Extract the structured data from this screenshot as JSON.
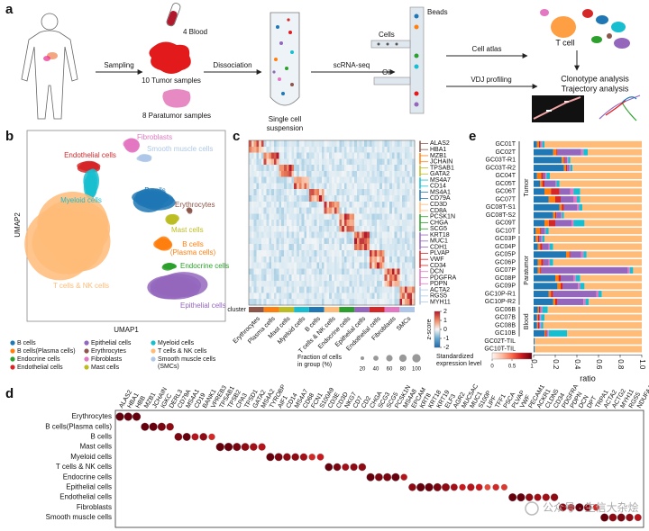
{
  "panel_labels": [
    "a",
    "b",
    "c",
    "d",
    "e"
  ],
  "a": {
    "blood": "4 Blood",
    "tumor": "10 Tumor samples",
    "paratumor": "8 Paratumor samples",
    "sampling": "Sampling",
    "dissociation": "Dissociation",
    "suspension": [
      "Single cell",
      "suspension"
    ],
    "scrnaseq": "scRNA-seq",
    "cells": "Cells",
    "beads": "Beads",
    "oil": "Oil",
    "cell_atlas": "Cell atlas",
    "t_cell": "T cell",
    "vdj": "VDJ profiling",
    "clonotype": "Clonotype analysis",
    "trajectory": "Trajectory analysis"
  },
  "b": {
    "xlabel": "UMAP1",
    "ylabel": "UMAP2",
    "labels": [
      {
        "lines": [
          "Fibroblasts"
        ],
        "color": "#e377c2"
      },
      {
        "lines": [
          "Endothelial cells"
        ],
        "color": "#d62728"
      },
      {
        "lines": [
          "Smooth muscle cells"
        ],
        "color": "#aec7e8"
      },
      {
        "lines": [
          "B cells"
        ],
        "color": "#1f77b4"
      },
      {
        "lines": [
          "Myeloid cells"
        ],
        "color": "#17becf"
      },
      {
        "lines": [
          "Erythrocytes"
        ],
        "color": "#8c564b"
      },
      {
        "lines": [
          "Mast cells"
        ],
        "color": "#bcbd22"
      },
      {
        "lines": [
          "B cells",
          "(Plasma cells)"
        ],
        "color": "#ff7f0e"
      },
      {
        "lines": [
          "Endocrine cells"
        ],
        "color": "#2ca02c"
      },
      {
        "lines": [
          "T cells & NK cells"
        ],
        "color": "#ffbb78"
      },
      {
        "lines": [
          "Epithelial cells"
        ],
        "color": "#9467bd"
      }
    ],
    "legend": [
      {
        "lines": [
          "B cells"
        ],
        "color": "#1f77b4"
      },
      {
        "lines": [
          "B cells(Plasma cells)"
        ],
        "color": "#ff7f0e"
      },
      {
        "lines": [
          "Endocrine cells"
        ],
        "color": "#2ca02c"
      },
      {
        "lines": [
          "Endothelial cells"
        ],
        "color": "#d62728"
      },
      {
        "lines": [
          "Epithelial cells"
        ],
        "color": "#9467bd"
      },
      {
        "lines": [
          "Erythrocytes"
        ],
        "color": "#8c564b"
      },
      {
        "lines": [
          "Fibroblasts"
        ],
        "color": "#e377c2"
      },
      {
        "lines": [
          "Mast cells"
        ],
        "color": "#bcbd22"
      },
      {
        "lines": [
          "Myeloid cells"
        ],
        "color": "#17becf"
      },
      {
        "lines": [
          "T cells & NK cells"
        ],
        "color": "#ffbb78"
      },
      {
        "lines": [
          "Smooth muscle cells",
          "(SMCs)"
        ],
        "color": "#aec7e8"
      }
    ]
  },
  "c": {
    "cluster_label": "cluster",
    "colorbar_label": "z-score",
    "colorbar_lim": [
      -2,
      2
    ],
    "colorbar_ticks": [
      2,
      1,
      0,
      -1,
      -2
    ],
    "groups": [
      {
        "cluster": "Erythrocytes",
        "color": "#8c564b",
        "genes": [
          "ALAS2",
          "HBA1"
        ]
      },
      {
        "cluster": "Plasma cells",
        "color": "#ff7f0e",
        "genes": [
          "MZB1",
          "JCHAIN"
        ]
      },
      {
        "cluster": "Mast cells",
        "color": "#bcbd22",
        "genes": [
          "TPSAB1",
          "GATA2"
        ]
      },
      {
        "cluster": "Myeloid cells",
        "color": "#17becf",
        "genes": [
          "MS4A7",
          "CD14"
        ]
      },
      {
        "cluster": "B cells",
        "color": "#1f77b4",
        "genes": [
          "MS4A1",
          "CD79A"
        ]
      },
      {
        "cluster": "T cells & NK cells",
        "color": "#ffbb78",
        "genes": [
          "CD3D",
          "CD8A"
        ]
      },
      {
        "cluster": "Endocrine cells",
        "color": "#2ca02c",
        "genes": [
          "PCSK1N",
          "CHGA",
          "SCG5"
        ]
      },
      {
        "cluster": "Epithelial cells",
        "color": "#9467bd",
        "genes": [
          "KRT18",
          "MUC1",
          "CDH1"
        ]
      },
      {
        "cluster": "Endothelial cells",
        "color": "#d62728",
        "genes": [
          "PLVAP",
          "VWF",
          "CD34"
        ]
      },
      {
        "cluster": "Fibroblasts",
        "color": "#e377c2",
        "genes": [
          "DCN",
          "PDGFRA",
          "PDPN"
        ]
      },
      {
        "cluster": "SMCs",
        "color": "#aec7e8",
        "genes": [
          "ACTA2",
          "RGS5",
          "MYH11"
        ]
      }
    ]
  },
  "d": {
    "size_legend": {
      "title": [
        "Fraction of cells",
        "in group (%)"
      ],
      "values": [
        20,
        40,
        60,
        80,
        100
      ]
    },
    "color_legend": {
      "title": [
        "Standardized",
        "expression level"
      ],
      "lim": [
        0,
        1
      ],
      "ticks": [
        0,
        0.5,
        1
      ]
    },
    "watermark": "公众号 · 生信大杂烩",
    "groups": [
      {
        "cell_type": "Erythrocytes",
        "genes": [
          "ALAS2",
          "HBA1",
          "HBB"
        ],
        "fraction": [
          95,
          95,
          95
        ],
        "expression": [
          1,
          1,
          1
        ]
      },
      {
        "cell_type": "B cells(Plasma cells)",
        "genes": [
          "MZB1",
          "JCHAIN",
          "IGKC",
          "DERL3"
        ],
        "fraction": [
          90,
          95,
          92,
          80
        ],
        "expression": [
          1,
          1,
          0.95,
          0.9
        ]
      },
      {
        "cell_type": "B cells",
        "genes": [
          "CD79A",
          "MS4A1",
          "CD19",
          "BANK1",
          "VPREB3"
        ],
        "fraction": [
          85,
          88,
          70,
          80,
          60
        ],
        "expression": [
          0.95,
          1,
          0.8,
          0.9,
          0.7
        ]
      },
      {
        "cell_type": "Mast cells",
        "genes": [
          "TPSAB1",
          "TPSB2",
          "CPA3",
          "TPSD1",
          "GATA2",
          "MS4A2"
        ],
        "fraction": [
          95,
          95,
          90,
          85,
          80,
          75
        ],
        "expression": [
          1,
          1,
          0.95,
          0.9,
          0.85,
          0.8
        ]
      },
      {
        "cell_type": "Myeloid cells",
        "genes": [
          "TYROBP",
          "AIF1",
          "CD14",
          "MS4A7",
          "CD68",
          "FCN1",
          "S100A9"
        ],
        "fraction": [
          90,
          88,
          80,
          78,
          75,
          60,
          65
        ],
        "expression": [
          1,
          0.95,
          0.9,
          0.9,
          0.85,
          0.7,
          0.75
        ]
      },
      {
        "cell_type": "T cells & NK cells",
        "genes": [
          "CD3E",
          "CD3D",
          "NKG7",
          "CD7",
          "CD2"
        ],
        "fraction": [
          85,
          80,
          70,
          75,
          80
        ],
        "expression": [
          1,
          0.95,
          0.85,
          0.9,
          0.9
        ]
      },
      {
        "cell_type": "Endocrine cells",
        "genes": [
          "CHGA",
          "SCG3",
          "SCG5",
          "PCSK1N",
          "MS4A8"
        ],
        "fraction": [
          90,
          85,
          88,
          90,
          60
        ],
        "expression": [
          1,
          0.95,
          0.95,
          1,
          0.8
        ]
      },
      {
        "cell_type": "Epithelial cells",
        "genes": [
          "EPCAM",
          "KRT8",
          "KRT18",
          "KRT19",
          "ELF3",
          "AGR2",
          "MUC5AC",
          "MUC1",
          "S100P",
          "LIPF",
          "TFF1",
          "PSCA"
        ],
        "fraction": [
          80,
          95,
          95,
          90,
          88,
          70,
          60,
          75,
          65,
          50,
          60,
          55
        ],
        "expression": [
          0.9,
          1,
          1,
          0.95,
          0.9,
          0.85,
          0.75,
          0.8,
          0.75,
          0.6,
          0.7,
          0.65
        ]
      },
      {
        "cell_type": "Endothelial cells",
        "genes": [
          "PLVAP",
          "VWF",
          "PECAM1",
          "ACKR1",
          "CLDN5",
          "CD34"
        ],
        "fraction": [
          90,
          92,
          80,
          70,
          75,
          80
        ],
        "expression": [
          1,
          1,
          0.9,
          0.85,
          0.85,
          0.9
        ]
      },
      {
        "cell_type": "Fibroblasts",
        "genes": [
          "PDGFRA",
          "PDPN",
          "DCN",
          "DPT",
          "TRPA1"
        ],
        "fraction": [
          85,
          70,
          95,
          80,
          60
        ],
        "expression": [
          0.9,
          0.8,
          1,
          0.9,
          0.7
        ]
      },
      {
        "cell_type": "Smooth muscle cells",
        "genes": [
          "ACTA2",
          "ACTG2",
          "MYH11",
          "RGS5",
          "NDUFA4L2"
        ],
        "fraction": [
          90,
          85,
          88,
          80,
          70
        ],
        "expression": [
          1,
          0.9,
          0.95,
          0.9,
          0.8
        ]
      }
    ]
  },
  "e": {
    "xlabel": "ratio",
    "xlim": [
      0,
      1
    ],
    "xticks": [
      0,
      0.2,
      0.4,
      0.6,
      0.8,
      {
        "value": 1,
        "label": "1.0"
      }
    ],
    "groups": [
      {
        "name": "Tumor",
        "rows": [
          "GC01T",
          "GC02T",
          "GC03T-R1",
          "GC03T-R2",
          "GC04T",
          "GC05T",
          "GC06T",
          "GC07T",
          "GC08T-S1",
          "GC08T-S2",
          "GC09T",
          "GC10T"
        ]
      },
      {
        "name": "Paratumor",
        "rows": [
          "GC03P",
          "GC04P",
          "GC05P",
          "GC06P",
          "GC07P",
          "GC08P",
          "GC09P",
          "GC10P-R1",
          "GC10P-R2"
        ]
      },
      {
        "name": "Blood",
        "rows": [
          "GC06B",
          "GC07B",
          "GC08B",
          "GC10B"
        ]
      },
      {
        "rows": [
          "GC02T-TIL",
          "GC10T-TIL"
        ]
      }
    ],
    "series": [
      {
        "color": "#1f77b4",
        "values": [
          0.03,
          0.18,
          0.26,
          0.28,
          0.03,
          0.06,
          0.1,
          0.14,
          0.24,
          0.18,
          0.1,
          0.02,
          0.02,
          0.04,
          0.3,
          0.04,
          0.04,
          0.2,
          0.22,
          0.14,
          0.18,
          0.04,
          0.03,
          0.03,
          0.1,
          0.01,
          0.01
        ]
      },
      {
        "color": "#ff7f0e",
        "values": [
          0.02,
          0.03,
          0.02,
          0.02,
          0.04,
          0.02,
          0.06,
          0.06,
          0.02,
          0.02,
          0.04,
          0.04,
          0.02,
          0.02,
          0.03,
          0.03,
          0.02,
          0.03,
          0.03,
          0.02,
          0.02,
          0.01,
          0.01,
          0.01,
          0.01,
          0,
          0
        ]
      },
      {
        "color": "#d62728",
        "values": [
          0.01,
          0.01,
          0.01,
          0.01,
          0.02,
          0.02,
          0.08,
          0.05,
          0.02,
          0.01,
          0.06,
          0.01,
          0.01,
          0.02,
          0.01,
          0.02,
          0.01,
          0.02,
          0.02,
          0.02,
          0.02,
          0.01,
          0.01,
          0.01,
          0.01,
          0,
          0
        ]
      },
      {
        "color": "#9467bd",
        "values": [
          0.01,
          0.22,
          0.02,
          0.02,
          0.02,
          0.1,
          0.1,
          0.12,
          0.12,
          0.04,
          0.15,
          0.03,
          0.02,
          0.06,
          0.1,
          0.05,
          0.8,
          0.12,
          0.14,
          0.4,
          0.24,
          0.01,
          0.01,
          0.01,
          0.01,
          0,
          0
        ]
      },
      {
        "color": "#e377c2",
        "values": [
          0.01,
          0.02,
          0.01,
          0.01,
          0.01,
          0.01,
          0.03,
          0.03,
          0.02,
          0.01,
          0.02,
          0.01,
          0.01,
          0.01,
          0.02,
          0.01,
          0.02,
          0.02,
          0.02,
          0.02,
          0.02,
          0.01,
          0.01,
          0.01,
          0.01,
          0,
          0
        ]
      },
      {
        "color": "#17becf",
        "values": [
          0.02,
          0.04,
          0.02,
          0.02,
          0.03,
          0.03,
          0.06,
          0.03,
          0.03,
          0.02,
          0.1,
          0.03,
          0.02,
          0.03,
          0.03,
          0.03,
          0.03,
          0.04,
          0.04,
          0.03,
          0.03,
          0.05,
          0.03,
          0.02,
          0.17,
          0,
          0
        ]
      },
      {
        "color": "#ffbb78",
        "values": [
          0.9,
          0.5,
          0.66,
          0.64,
          0.85,
          0.76,
          0.57,
          0.57,
          0.55,
          0.72,
          0.53,
          0.86,
          0.9,
          0.82,
          0.51,
          0.82,
          0.08,
          0.57,
          0.53,
          0.37,
          0.49,
          0.87,
          0.9,
          0.91,
          0.69,
          0.99,
          0.99
        ]
      }
    ]
  }
}
